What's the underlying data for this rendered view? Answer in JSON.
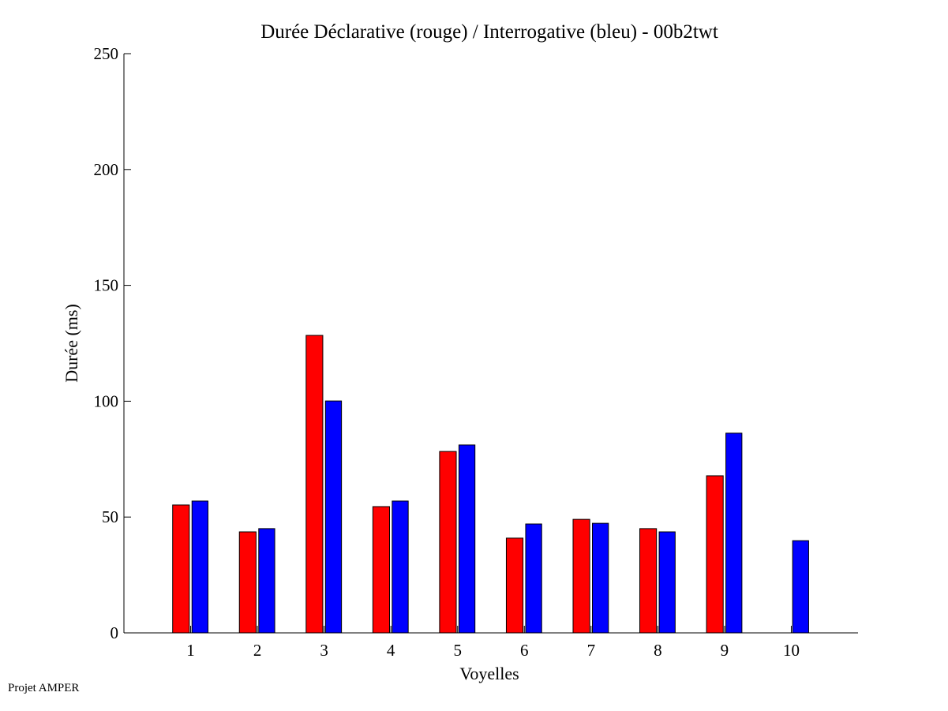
{
  "chart_data": {
    "type": "bar",
    "title": "Durée Déclarative (rouge) / Interrogative (bleu) - 00b2twt",
    "xlabel": "Voyelles",
    "ylabel": "Durée (ms)",
    "categories": [
      "1",
      "2",
      "3",
      "4",
      "5",
      "6",
      "7",
      "8",
      "9",
      "10"
    ],
    "xlim": [
      0,
      11
    ],
    "ylim": [
      0,
      250
    ],
    "yticks": [
      0,
      50,
      100,
      150,
      200,
      250
    ],
    "grid": false,
    "series": [
      {
        "color": "#ff0000",
        "values": [
          55.2,
          43.6,
          128.4,
          54.5,
          78.3,
          40.9,
          49.0,
          45.0,
          67.8,
          0
        ]
      },
      {
        "color": "#0000ff",
        "values": [
          56.9,
          45.0,
          100.1,
          56.9,
          81.1,
          47.0,
          47.3,
          43.6,
          86.2,
          39.8
        ]
      }
    ]
  },
  "footer": "Projet AMPER"
}
